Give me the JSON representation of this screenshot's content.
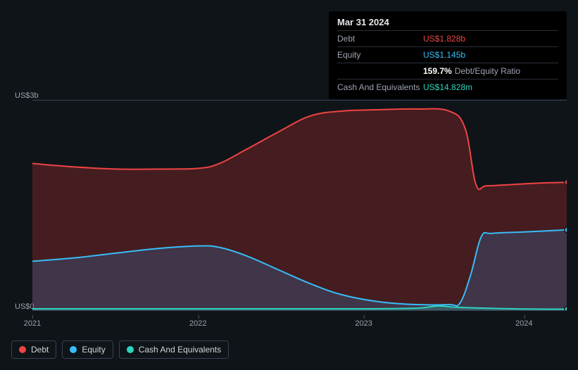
{
  "chart": {
    "type": "area",
    "background_color": "#0f1419",
    "grid_color": "#374151",
    "text_color": "#9ca3af",
    "ylim": [
      0,
      3
    ],
    "y_unit_prefix": "US$",
    "y_unit_suffix": "b",
    "y_ticks": [
      {
        "value": 0,
        "label": "US$0"
      },
      {
        "value": 3,
        "label": "US$3b"
      }
    ],
    "x_ticks": [
      {
        "pos": 0.0,
        "label": "2021"
      },
      {
        "pos": 0.31,
        "label": "2022"
      },
      {
        "pos": 0.62,
        "label": "2023"
      },
      {
        "pos": 0.92,
        "label": "2024"
      }
    ],
    "series": {
      "debt": {
        "label": "Debt",
        "color": "#ef4444",
        "fill_color": "rgba(185,50,50,0.32)",
        "line_width": 2,
        "points": [
          {
            "x": 0.0,
            "y": 2.1
          },
          {
            "x": 0.08,
            "y": 2.05
          },
          {
            "x": 0.16,
            "y": 2.02
          },
          {
            "x": 0.23,
            "y": 2.02
          },
          {
            "x": 0.31,
            "y": 2.03
          },
          {
            "x": 0.35,
            "y": 2.1
          },
          {
            "x": 0.4,
            "y": 2.3
          },
          {
            "x": 0.46,
            "y": 2.55
          },
          {
            "x": 0.52,
            "y": 2.78
          },
          {
            "x": 0.58,
            "y": 2.85
          },
          {
            "x": 0.65,
            "y": 2.87
          },
          {
            "x": 0.72,
            "y": 2.88
          },
          {
            "x": 0.78,
            "y": 2.85
          },
          {
            "x": 0.81,
            "y": 2.6
          },
          {
            "x": 0.83,
            "y": 1.8
          },
          {
            "x": 0.85,
            "y": 1.78
          },
          {
            "x": 0.9,
            "y": 1.8
          },
          {
            "x": 0.95,
            "y": 1.82
          },
          {
            "x": 1.0,
            "y": 1.83
          }
        ]
      },
      "equity": {
        "label": "Equity",
        "color": "#38bdf8",
        "fill_color": "rgba(56,120,180,0.28)",
        "line_width": 2,
        "points": [
          {
            "x": 0.0,
            "y": 0.7
          },
          {
            "x": 0.08,
            "y": 0.75
          },
          {
            "x": 0.16,
            "y": 0.82
          },
          {
            "x": 0.23,
            "y": 0.88
          },
          {
            "x": 0.31,
            "y": 0.92
          },
          {
            "x": 0.35,
            "y": 0.9
          },
          {
            "x": 0.4,
            "y": 0.78
          },
          {
            "x": 0.46,
            "y": 0.58
          },
          {
            "x": 0.52,
            "y": 0.38
          },
          {
            "x": 0.58,
            "y": 0.22
          },
          {
            "x": 0.65,
            "y": 0.12
          },
          {
            "x": 0.72,
            "y": 0.08
          },
          {
            "x": 0.78,
            "y": 0.08
          },
          {
            "x": 0.8,
            "y": 0.1
          },
          {
            "x": 0.82,
            "y": 0.5
          },
          {
            "x": 0.84,
            "y": 1.05
          },
          {
            "x": 0.86,
            "y": 1.1
          },
          {
            "x": 0.92,
            "y": 1.12
          },
          {
            "x": 1.0,
            "y": 1.15
          }
        ]
      },
      "cash": {
        "label": "Cash And Equivalents",
        "color": "#2dd4bf",
        "fill_color": "rgba(45,212,191,0.25)",
        "line_width": 2,
        "points": [
          {
            "x": 0.0,
            "y": 0.02
          },
          {
            "x": 0.15,
            "y": 0.02
          },
          {
            "x": 0.31,
            "y": 0.02
          },
          {
            "x": 0.46,
            "y": 0.02
          },
          {
            "x": 0.62,
            "y": 0.02
          },
          {
            "x": 0.72,
            "y": 0.03
          },
          {
            "x": 0.76,
            "y": 0.06
          },
          {
            "x": 0.8,
            "y": 0.04
          },
          {
            "x": 0.9,
            "y": 0.02
          },
          {
            "x": 1.0,
            "y": 0.015
          }
        ]
      }
    },
    "end_markers": true
  },
  "tooltip": {
    "title": "Mar 31 2024",
    "rows": [
      {
        "label": "Debt",
        "value": "US$1.828b",
        "cls": "debt"
      },
      {
        "label": "Equity",
        "value": "US$1.145b",
        "cls": "equity"
      },
      {
        "label": "",
        "value": "159.7%",
        "suffix": "Debt/Equity Ratio",
        "cls": "ratio"
      },
      {
        "label": "Cash And Equivalents",
        "value": "US$14.828m",
        "cls": "cash"
      }
    ]
  },
  "legend": {
    "items": [
      {
        "key": "debt",
        "label": "Debt",
        "color": "#ef4444"
      },
      {
        "key": "equity",
        "label": "Equity",
        "color": "#38bdf8"
      },
      {
        "key": "cash",
        "label": "Cash And Equivalents",
        "color": "#2dd4bf"
      }
    ]
  }
}
